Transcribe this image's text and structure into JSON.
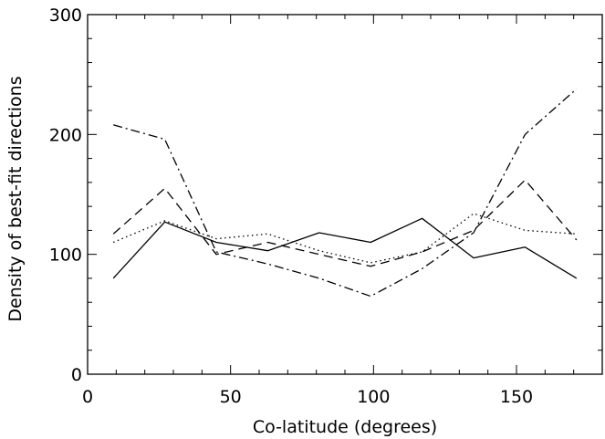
{
  "chart_data": {
    "type": "line",
    "title": "",
    "xlabel": "Co-latitude (degrees)",
    "ylabel": "Density of best-fit directions",
    "xlim": [
      0,
      180
    ],
    "ylim": [
      0,
      300
    ],
    "grid": false,
    "x_ticks": [
      0,
      50,
      100,
      150
    ],
    "y_ticks": [
      0,
      100,
      200,
      300
    ],
    "x_tick_labels": [
      "0",
      "50",
      "100",
      "150"
    ],
    "y_tick_labels": [
      "0",
      "100",
      "200",
      "300"
    ],
    "x": [
      9,
      27,
      45,
      63,
      81,
      99,
      117,
      135,
      153,
      171
    ],
    "series": [
      {
        "style": "solid",
        "values": [
          80,
          127,
          110,
          103,
          118,
          110,
          130,
          97,
          106,
          80
        ]
      },
      {
        "style": "dashed",
        "values": [
          117,
          155,
          100,
          110,
          100,
          90,
          102,
          120,
          162,
          112
        ]
      },
      {
        "style": "dotted",
        "values": [
          110,
          128,
          113,
          117,
          103,
          93,
          102,
          134,
          120,
          117
        ]
      },
      {
        "style": "dash-dot",
        "values": [
          208,
          196,
          102,
          92,
          80,
          65,
          88,
          118,
          200,
          238
        ]
      }
    ],
    "colors": {
      "line": "#000000",
      "background": "#ffffff"
    }
  }
}
